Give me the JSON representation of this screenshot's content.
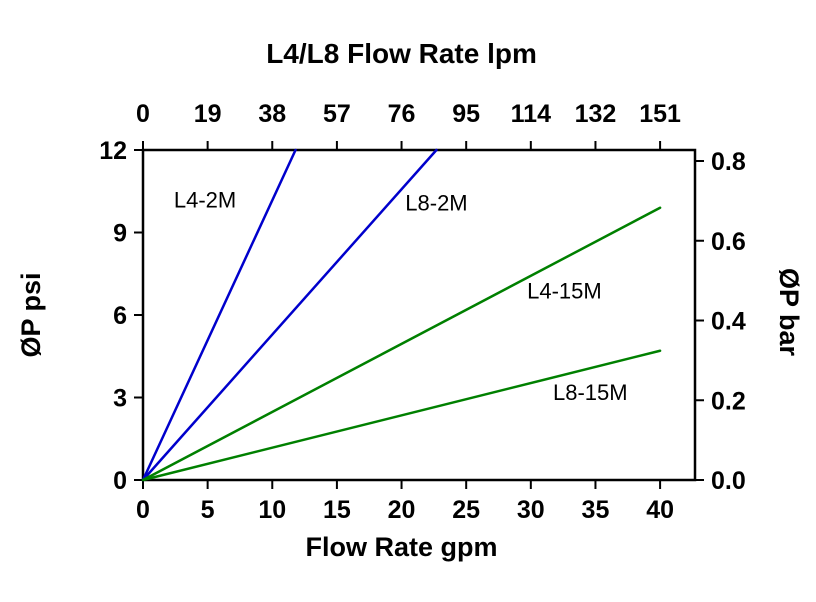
{
  "page": {
    "background_color": "#ffffff"
  },
  "chart_data": {
    "type": "line",
    "title": "L4/L8  Flow Rate lpm",
    "xlabel": "Flow Rate gpm",
    "ylabel_left": "ØP psi",
    "ylabel_right": "ØP bar",
    "x_axis_bottom": {
      "unit": "gpm",
      "tick_values": [
        0,
        5,
        10,
        15,
        20,
        25,
        30,
        35,
        40
      ],
      "tick_labels": [
        "0",
        "5",
        "10",
        "15",
        "20",
        "25",
        "30",
        "35",
        "40"
      ]
    },
    "x_axis_top": {
      "unit": "lpm",
      "tick_labels": [
        "0",
        "19",
        "38",
        "57",
        "76",
        "95",
        "114",
        "132",
        "151"
      ]
    },
    "y_axis_left": {
      "unit": "psi",
      "tick_values": [
        0,
        3,
        6,
        9,
        12
      ],
      "tick_labels": [
        "0",
        "3",
        "6",
        "9",
        "12"
      ]
    },
    "y_axis_right": {
      "unit": "bar",
      "tick_values": [
        0.0,
        0.2,
        0.4,
        0.6,
        0.8
      ],
      "tick_labels": [
        "0.0",
        "0.2",
        "0.4",
        "0.6",
        "0.8"
      ]
    },
    "xlim": [
      0,
      42.7
    ],
    "ylim_psi": [
      0,
      12
    ],
    "psi_per_bar": 14.5,
    "grid": false,
    "legend": "inline-labels",
    "axis_color": "#000000",
    "text_color": "#000000",
    "series": [
      {
        "name": "L4-2M",
        "color": "#0000cc",
        "points_gpm_psi": [
          [
            0,
            0
          ],
          [
            11.8,
            12
          ]
        ],
        "label_at_gpm_psi": [
          4.8,
          10.2
        ]
      },
      {
        "name": "L8-2M",
        "color": "#0000cc",
        "points_gpm_psi": [
          [
            0,
            0
          ],
          [
            22.7,
            12
          ]
        ],
        "label_at_gpm_psi": [
          22.7,
          10.1
        ]
      },
      {
        "name": "L4-15M",
        "color": "#008000",
        "points_gpm_psi": [
          [
            0,
            0
          ],
          [
            40,
            9.9
          ]
        ],
        "label_at_gpm_psi": [
          32.6,
          6.9
        ]
      },
      {
        "name": "L8-15M",
        "color": "#008000",
        "points_gpm_psi": [
          [
            0,
            0
          ],
          [
            40,
            4.7
          ]
        ],
        "label_at_gpm_psi": [
          34.6,
          3.2
        ]
      }
    ]
  }
}
